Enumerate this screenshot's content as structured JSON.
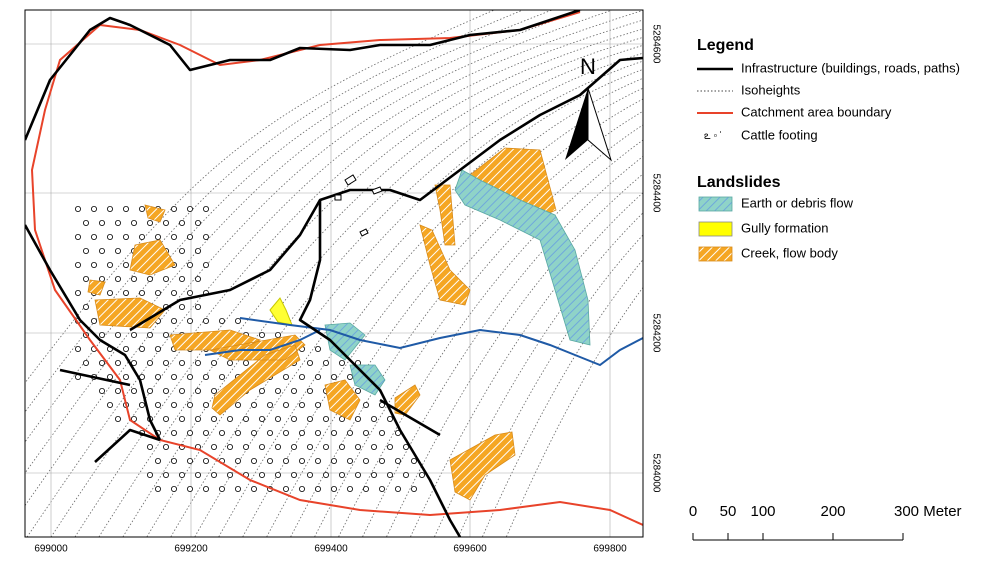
{
  "map": {
    "x_labels": [
      "699000",
      "699200",
      "699400",
      "699600",
      "699800"
    ],
    "y_labels": [
      "5284600",
      "5284400",
      "5284200",
      "5284000"
    ],
    "north": "N",
    "legend": {
      "title": "Legend",
      "items": [
        "Infrastructure (buildings, roads, paths)",
        "Isoheights",
        "Catchment area boundary",
        "Cattle footing"
      ]
    },
    "landslides": {
      "title": "Landslides",
      "items": [
        "Earth or debris flow",
        "Gully formation",
        "Creek, flow body"
      ]
    },
    "scale": {
      "labels": [
        "0",
        "50",
        "100",
        "200",
        "300 Meter"
      ]
    }
  }
}
